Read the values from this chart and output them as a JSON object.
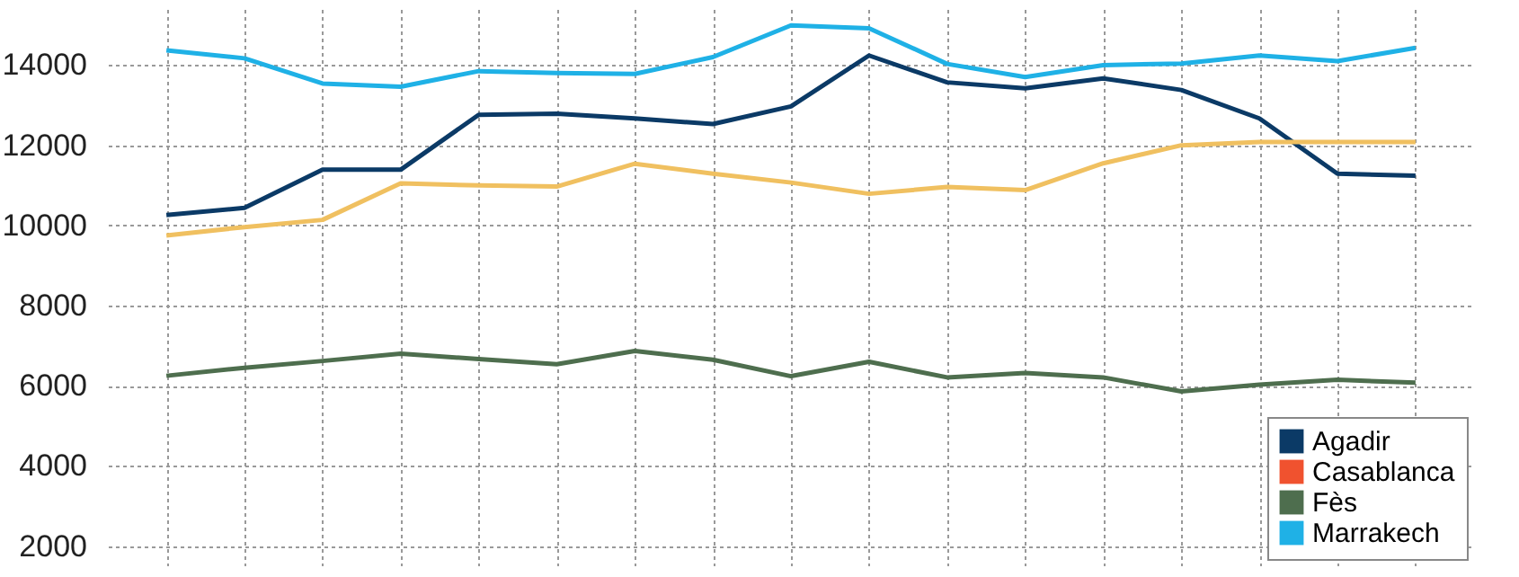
{
  "chart_data": {
    "type": "line",
    "categories": [
      null,
      null,
      null,
      null,
      null,
      null,
      null,
      null,
      null,
      null,
      null,
      null,
      null,
      null,
      null,
      null,
      null
    ],
    "series": [
      {
        "name": "Agadir",
        "color": "#0b3a66",
        "values": [
          10260,
          10440,
          11390,
          11390,
          12760,
          12790,
          12670,
          12530,
          12970,
          14240,
          13570,
          13420,
          13670,
          13380,
          12670,
          11290,
          11240
        ]
      },
      {
        "name": "Casablanca",
        "color": "#f0522f",
        "values": [
          null,
          null,
          null,
          null,
          null,
          null,
          null,
          null,
          null,
          null,
          null,
          null,
          null,
          null,
          null,
          null,
          null
        ]
      },
      {
        "name": "Fès",
        "color": "#4e6e4e",
        "values": [
          6250,
          6450,
          6620,
          6800,
          6670,
          6540,
          6870,
          6650,
          6240,
          6600,
          6210,
          6320,
          6210,
          5860,
          6030,
          6150,
          6080
        ]
      },
      {
        "name": "Marrakech",
        "color": "#1fb1e6",
        "values": [
          14370,
          14170,
          13540,
          13460,
          13850,
          13800,
          13780,
          14200,
          14990,
          14920,
          14030,
          13700,
          14000,
          14040,
          14240,
          14100,
          14430
        ]
      },
      {
        "color": "#f0c060",
        "values": [
          9750,
          9960,
          10140,
          11050,
          11000,
          10970,
          11540,
          11290,
          11070,
          10790,
          10960,
          10880,
          11550,
          12000,
          12080,
          12080,
          12080
        ]
      }
    ],
    "ylim": [
      1500,
      15400
    ],
    "yticks": [
      2000,
      4000,
      6000,
      8000,
      10000,
      12000,
      14000
    ],
    "grid": true,
    "legend": "bottom right",
    "marker": "none",
    "line_style": "solid"
  }
}
